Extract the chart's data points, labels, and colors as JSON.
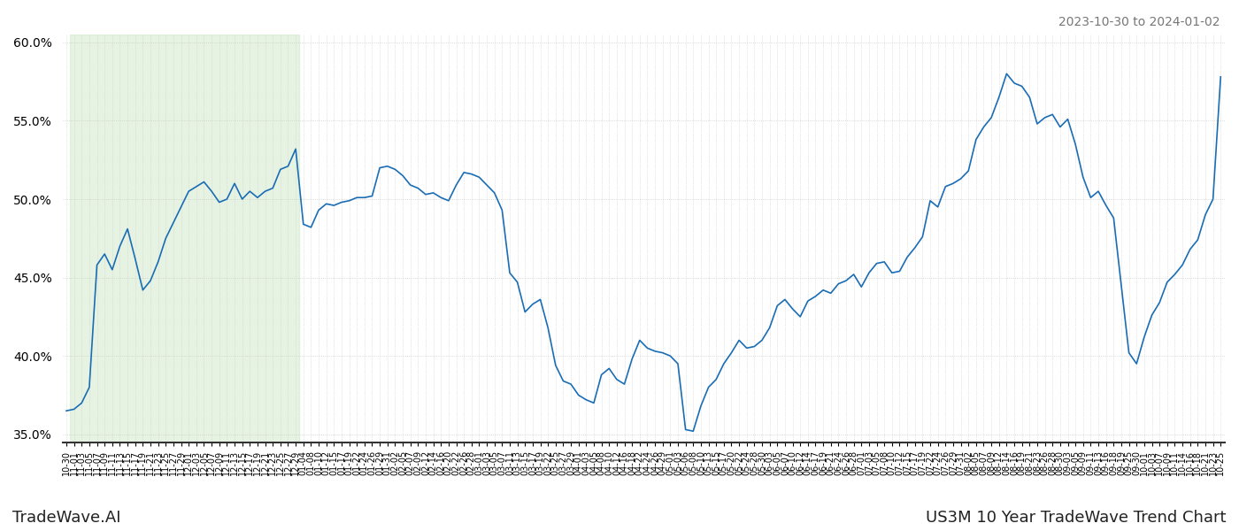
{
  "title_top_right": "2023-10-30 to 2024-01-02",
  "title_bottom_left": "TradeWave.AI",
  "title_bottom_right": "US3M 10 Year TradeWave Trend Chart",
  "line_color": "#1a6db5",
  "line_width": 1.2,
  "bg_color": "#ffffff",
  "grid_color": "#cccccc",
  "highlight_color": "#c8e6c0",
  "highlight_alpha": 0.45,
  "ylim": [
    0.345,
    0.605
  ],
  "yticks": [
    0.35,
    0.4,
    0.45,
    0.5,
    0.55,
    0.6
  ],
  "x_labels": [
    "10-30",
    "11-01",
    "11-03",
    "11-05",
    "11-07",
    "11-09",
    "11-11",
    "11-13",
    "11-15",
    "11-17",
    "11-19",
    "11-21",
    "11-23",
    "11-25",
    "11-27",
    "11-29",
    "12-01",
    "12-03",
    "12-05",
    "12-07",
    "12-09",
    "12-11",
    "12-13",
    "12-15",
    "12-17",
    "12-19",
    "12-21",
    "12-23",
    "12-25",
    "12-27",
    "12-29",
    "01-04",
    "01-08",
    "01-10",
    "01-12",
    "01-15",
    "01-17",
    "01-19",
    "01-22",
    "01-24",
    "01-26",
    "01-29",
    "01-31",
    "02-02",
    "02-05",
    "02-07",
    "02-09",
    "02-12",
    "02-14",
    "02-16",
    "02-20",
    "02-22",
    "02-26",
    "02-28",
    "03-01",
    "03-03",
    "03-05",
    "03-07",
    "03-11",
    "03-13",
    "03-15",
    "03-17",
    "03-19",
    "03-22",
    "03-25",
    "03-27",
    "03-29",
    "04-01",
    "04-03",
    "04-05",
    "04-08",
    "04-10",
    "04-12",
    "04-16",
    "04-18",
    "04-22",
    "04-24",
    "04-26",
    "04-29",
    "05-01",
    "05-03",
    "05-06",
    "05-08",
    "05-10",
    "05-13",
    "05-15",
    "05-17",
    "05-20",
    "05-22",
    "05-24",
    "05-28",
    "05-30",
    "06-03",
    "06-05",
    "06-07",
    "06-10",
    "06-12",
    "06-14",
    "06-17",
    "06-19",
    "06-21",
    "06-24",
    "06-26",
    "06-28",
    "07-01",
    "07-03",
    "07-05",
    "07-08",
    "07-10",
    "07-12",
    "07-15",
    "07-17",
    "07-19",
    "07-22",
    "07-24",
    "07-26",
    "07-29",
    "07-31",
    "08-02",
    "08-05",
    "08-07",
    "08-09",
    "08-12",
    "08-14",
    "08-16",
    "08-19",
    "08-21",
    "08-23",
    "08-26",
    "08-28",
    "08-30",
    "09-03",
    "09-05",
    "09-09",
    "09-11",
    "09-13",
    "09-16",
    "09-18",
    "09-19",
    "09-25",
    "09-30",
    "10-01",
    "10-03",
    "10-07",
    "10-09",
    "10-11",
    "10-14",
    "10-16",
    "10-18",
    "10-21",
    "10-23",
    "10-25"
  ],
  "highlight_start_label": "11-01",
  "highlight_end_label": "12-29",
  "values": [
    0.365,
    0.366,
    0.37,
    0.38,
    0.458,
    0.465,
    0.455,
    0.47,
    0.481,
    0.462,
    0.442,
    0.448,
    0.46,
    0.475,
    0.485,
    0.495,
    0.505,
    0.508,
    0.511,
    0.505,
    0.498,
    0.5,
    0.51,
    0.5,
    0.505,
    0.501,
    0.505,
    0.507,
    0.519,
    0.521,
    0.532,
    0.484,
    0.482,
    0.493,
    0.497,
    0.496,
    0.498,
    0.499,
    0.501,
    0.501,
    0.502,
    0.52,
    0.521,
    0.519,
    0.515,
    0.509,
    0.507,
    0.503,
    0.504,
    0.501,
    0.499,
    0.509,
    0.517,
    0.516,
    0.514,
    0.509,
    0.504,
    0.493,
    0.453,
    0.447,
    0.428,
    0.433,
    0.436,
    0.418,
    0.394,
    0.384,
    0.382,
    0.375,
    0.372,
    0.37,
    0.388,
    0.392,
    0.385,
    0.382,
    0.398,
    0.41,
    0.405,
    0.403,
    0.402,
    0.4,
    0.395,
    0.353,
    0.352,
    0.368,
    0.38,
    0.385,
    0.395,
    0.402,
    0.41,
    0.405,
    0.406,
    0.41,
    0.418,
    0.432,
    0.436,
    0.43,
    0.425,
    0.435,
    0.438,
    0.442,
    0.44,
    0.446,
    0.448,
    0.452,
    0.444,
    0.453,
    0.459,
    0.46,
    0.453,
    0.454,
    0.463,
    0.469,
    0.476,
    0.499,
    0.495,
    0.508,
    0.51,
    0.513,
    0.518,
    0.538,
    0.546,
    0.552,
    0.565,
    0.58,
    0.574,
    0.572,
    0.565,
    0.548,
    0.552,
    0.554,
    0.546,
    0.551,
    0.535,
    0.514,
    0.501,
    0.505,
    0.496,
    0.488,
    0.445,
    0.402,
    0.395,
    0.412,
    0.426,
    0.434,
    0.447,
    0.452,
    0.458,
    0.468,
    0.474,
    0.49,
    0.5,
    0.578
  ]
}
